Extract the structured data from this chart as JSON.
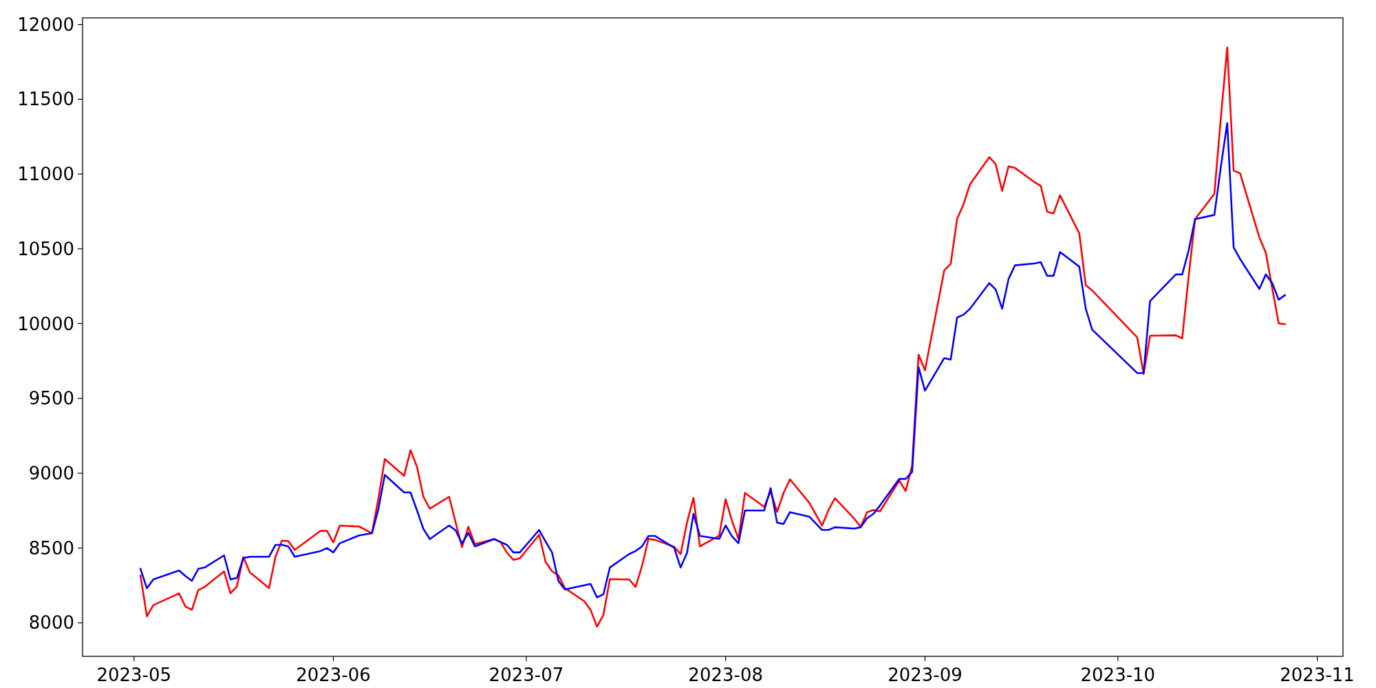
{
  "chart_data": {
    "type": "line",
    "x": [
      "2023-05-02",
      "2023-05-03",
      "2023-05-04",
      "2023-05-08",
      "2023-05-09",
      "2023-05-10",
      "2023-05-11",
      "2023-05-12",
      "2023-05-15",
      "2023-05-16",
      "2023-05-17",
      "2023-05-18",
      "2023-05-19",
      "2023-05-22",
      "2023-05-23",
      "2023-05-24",
      "2023-05-25",
      "2023-05-26",
      "2023-05-30",
      "2023-05-31",
      "2023-06-01",
      "2023-06-02",
      "2023-06-05",
      "2023-06-07",
      "2023-06-08",
      "2023-06-09",
      "2023-06-12",
      "2023-06-13",
      "2023-06-14",
      "2023-06-15",
      "2023-06-16",
      "2023-06-19",
      "2023-06-20",
      "2023-06-21",
      "2023-06-22",
      "2023-06-23",
      "2023-06-26",
      "2023-06-27",
      "2023-06-28",
      "2023-06-29",
      "2023-06-30",
      "2023-07-03",
      "2023-07-04",
      "2023-07-05",
      "2023-07-06",
      "2023-07-07",
      "2023-07-10",
      "2023-07-11",
      "2023-07-12",
      "2023-07-13",
      "2023-07-14",
      "2023-07-17",
      "2023-07-18",
      "2023-07-19",
      "2023-07-20",
      "2023-07-21",
      "2023-07-24",
      "2023-07-25",
      "2023-07-26",
      "2023-07-27",
      "2023-07-28",
      "2023-07-31",
      "2023-08-01",
      "2023-08-02",
      "2023-08-03",
      "2023-08-04",
      "2023-08-07",
      "2023-08-08",
      "2023-08-09",
      "2023-08-10",
      "2023-08-11",
      "2023-08-14",
      "2023-08-16",
      "2023-08-17",
      "2023-08-18",
      "2023-08-21",
      "2023-08-22",
      "2023-08-23",
      "2023-08-24",
      "2023-08-25",
      "2023-08-28",
      "2023-08-29",
      "2023-08-30",
      "2023-08-31",
      "2023-09-01",
      "2023-09-04",
      "2023-09-05",
      "2023-09-06",
      "2023-09-07",
      "2023-09-08",
      "2023-09-11",
      "2023-09-12",
      "2023-09-13",
      "2023-09-14",
      "2023-09-15",
      "2023-09-18",
      "2023-09-19",
      "2023-09-20",
      "2023-09-21",
      "2023-09-22",
      "2023-09-25",
      "2023-09-26",
      "2023-09-27",
      "2023-10-04",
      "2023-10-05",
      "2023-10-06",
      "2023-10-10",
      "2023-10-11",
      "2023-10-12",
      "2023-10-13",
      "2023-10-16",
      "2023-10-17",
      "2023-10-18",
      "2023-10-19",
      "2023-10-20",
      "2023-10-23",
      "2023-10-24",
      "2023-10-25",
      "2023-10-26",
      "2023-10-27"
    ],
    "series": [
      {
        "color": "#ff0000",
        "values": [
          8317,
          8044,
          8118,
          8197,
          8109,
          8087,
          8219,
          8240,
          8344,
          8197,
          8243,
          8439,
          8338,
          8232,
          8442,
          8550,
          8546,
          8488,
          8615,
          8615,
          8538,
          8650,
          8644,
          8599,
          8830,
          9095,
          8983,
          9154,
          9044,
          8843,
          8763,
          8843,
          8674,
          8506,
          8642,
          8526,
          8560,
          8540,
          8469,
          8421,
          8431,
          8589,
          8407,
          8345,
          8317,
          8232,
          8145,
          8087,
          7974,
          8054,
          8292,
          8290,
          8240,
          8381,
          8561,
          8555,
          8508,
          8460,
          8671,
          8836,
          8511,
          8583,
          8826,
          8680,
          8561,
          8868,
          8775,
          8879,
          8742,
          8867,
          8959,
          8803,
          8650,
          8755,
          8833,
          8696,
          8641,
          8740,
          8754,
          8745,
          8951,
          8881,
          9051,
          9793,
          9688,
          10357,
          10399,
          10701,
          10799,
          10931,
          11113,
          11066,
          10888,
          11052,
          11041,
          10947,
          10921,
          10748,
          10737,
          10858,
          10603,
          10257,
          10222,
          9908,
          9664,
          9919,
          9922,
          9902,
          10315,
          10699,
          10868,
          11372,
          11846,
          11023,
          11005,
          10576,
          10475,
          10237,
          10002,
          9996
        ]
      },
      {
        "color": "#0000ff",
        "values": [
          8362,
          8231,
          8290,
          8350,
          8313,
          8281,
          8361,
          8370,
          8451,
          8290,
          8300,
          8433,
          8442,
          8442,
          8521,
          8521,
          8511,
          8442,
          8480,
          8500,
          8471,
          8532,
          8584,
          8599,
          8760,
          8989,
          8872,
          8872,
          8752,
          8628,
          8560,
          8651,
          8619,
          8531,
          8602,
          8511,
          8560,
          8540,
          8521,
          8471,
          8471,
          8621,
          8544,
          8471,
          8280,
          8223,
          8251,
          8260,
          8170,
          8191,
          8370,
          8460,
          8480,
          8511,
          8581,
          8581,
          8502,
          8370,
          8468,
          8729,
          8581,
          8561,
          8651,
          8578,
          8532,
          8751,
          8751,
          8900,
          8670,
          8661,
          8740,
          8710,
          8621,
          8621,
          8639,
          8630,
          8639,
          8700,
          8729,
          8784,
          8962,
          8962,
          9009,
          9709,
          9552,
          9770,
          9760,
          10041,
          10060,
          10100,
          10271,
          10228,
          10100,
          10299,
          10390,
          10402,
          10411,
          10320,
          10320,
          10479,
          10381,
          10100,
          9960,
          9670,
          9670,
          10151,
          10329,
          10329,
          10489,
          10699,
          10727,
          11046,
          11341,
          10510,
          10432,
          10232,
          10329,
          10271,
          10160,
          10191
        ]
      }
    ],
    "xlim": [
      "2023-04-23",
      "2023-11-05"
    ],
    "xticks": [
      {
        "value": "2023-05-01",
        "label": "2023-05"
      },
      {
        "value": "2023-06-01",
        "label": "2023-06"
      },
      {
        "value": "2023-07-01",
        "label": "2023-07"
      },
      {
        "value": "2023-08-01",
        "label": "2023-08"
      },
      {
        "value": "2023-09-01",
        "label": "2023-09"
      },
      {
        "value": "2023-10-01",
        "label": "2023-10"
      },
      {
        "value": "2023-11-01",
        "label": "2023-11"
      }
    ],
    "ylim": [
      7776,
      12044
    ],
    "yticks": [
      8000,
      8500,
      9000,
      9500,
      10000,
      10500,
      11000,
      11500,
      12000
    ],
    "grid": false,
    "marker": "none",
    "line_style": "solid"
  }
}
